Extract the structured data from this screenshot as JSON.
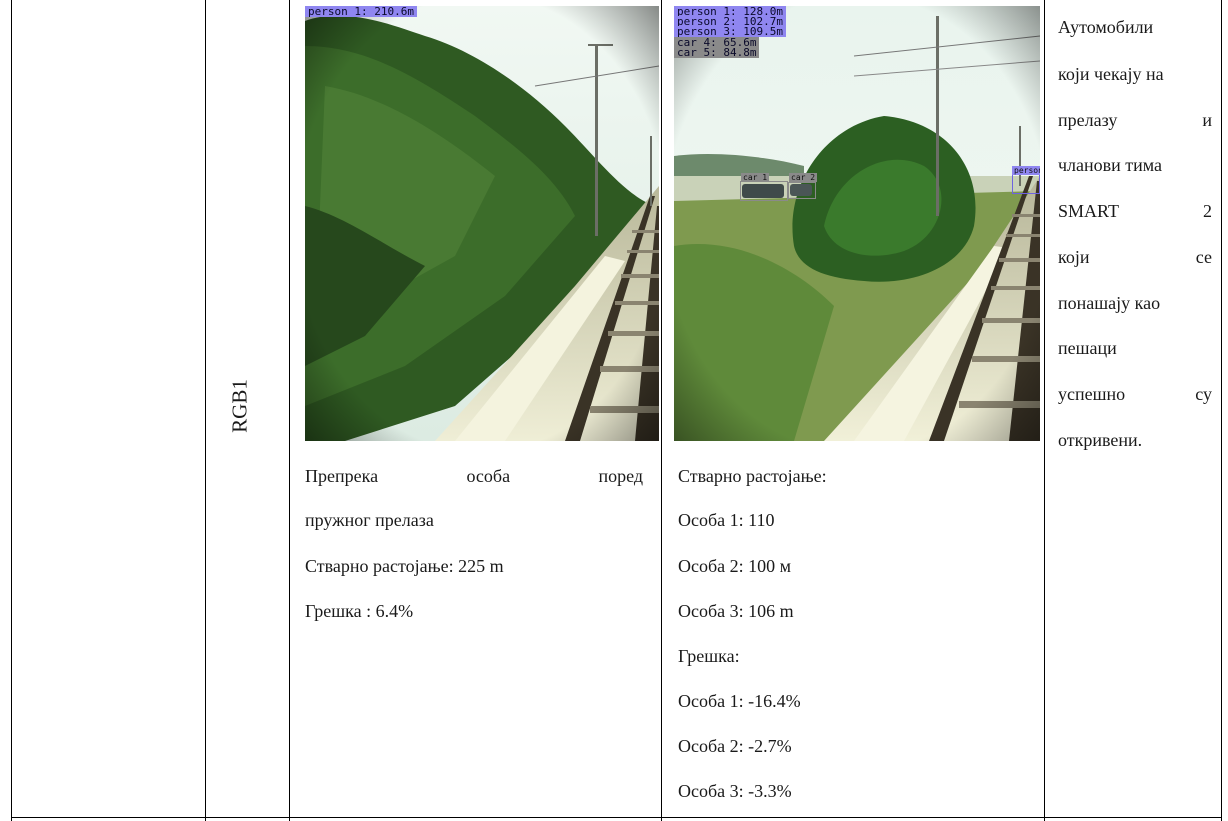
{
  "row_label": "RGB1",
  "image1": {
    "detections": [
      "person 1: 210.6m"
    ]
  },
  "image2": {
    "detections": [
      "person 1: 128.0m",
      "person 2: 102.7m",
      "person 3: 109.5m",
      "car 4: 65.6m",
      "car 5: 84.8m"
    ],
    "box_tags": [
      "car 1",
      "car 2",
      "person"
    ]
  },
  "col1": {
    "line1_words": [
      "Препрека",
      "особа",
      "поред"
    ],
    "line2": "пружног прелаза",
    "line3": "Стварно растојање: 225 m",
    "line4": "Грешка : 6.4%"
  },
  "col2": {
    "lines": [
      "Стварно растојање:",
      "Особа 1: 110",
      "Особа 2: 100 м",
      "Особа 3: 106 m",
      "Грешка:",
      "Особа 1: -16.4%",
      "Особа 2: -2.7%",
      "Особа 3: -3.3%"
    ]
  },
  "col3": {
    "line1": "Аутомобили",
    "line2": "који чекају на",
    "line3_words": [
      "прелазу",
      "и"
    ],
    "line4": "чланови тима",
    "line5_words": [
      "SMART",
      "2"
    ],
    "line6_words": [
      "који",
      "се"
    ],
    "line7": "понашају као",
    "line8": "пешаци",
    "line9_words": [
      "успешно",
      "су"
    ],
    "line10": "откривени."
  }
}
